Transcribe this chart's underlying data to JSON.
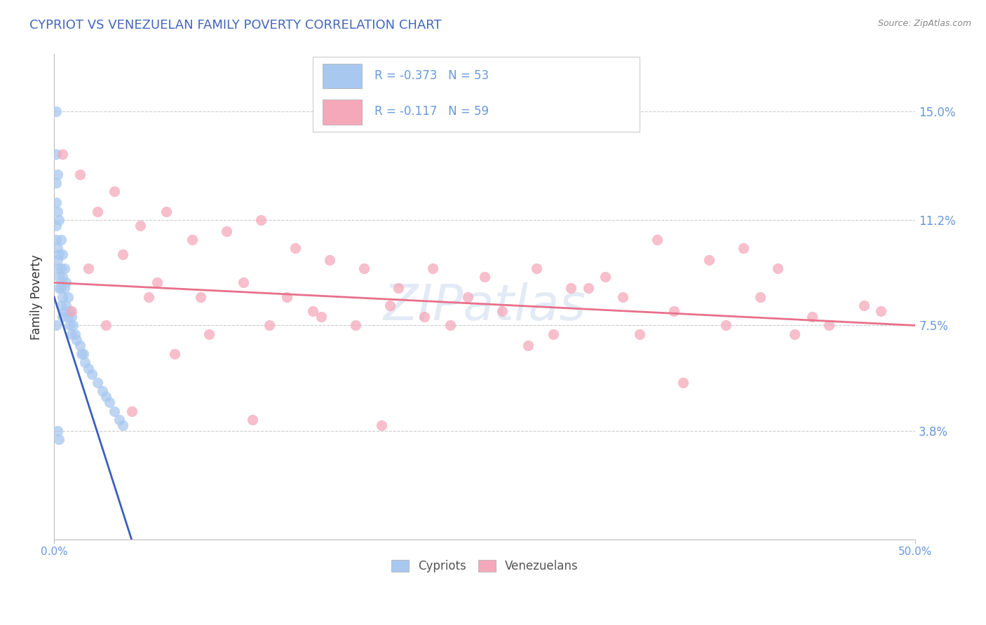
{
  "title": "CYPRIOT VS VENEZUELAN FAMILY POVERTY CORRELATION CHART",
  "source": "Source: ZipAtlas.com",
  "ylabel": "Family Poverty",
  "xlim": [
    0.0,
    50.0
  ],
  "ylim": [
    0.0,
    17.0
  ],
  "yticks": [
    3.8,
    7.5,
    11.2,
    15.0
  ],
  "ytick_labels": [
    "3.8%",
    "7.5%",
    "11.2%",
    "15.0%"
  ],
  "xtick_labels_show": [
    "0.0%",
    "50.0%"
  ],
  "xticks_show": [
    0.0,
    50.0
  ],
  "cypriot_color": "#A8C8F0",
  "cypriot_edge_color": "#A8C8F0",
  "venezuelan_color": "#F5A8BA",
  "venezuelan_edge_color": "#F5A8BA",
  "cypriot_line_color": "#3A5FBF",
  "venezuelan_line_color": "#E8708A",
  "cypriot_R": -0.373,
  "cypriot_N": 53,
  "venezuelan_R": -0.117,
  "venezuelan_N": 59,
  "legend_label_cypriot": "Cypriots",
  "legend_label_venezuelan": "Venezuelans",
  "watermark": "ZIPatlas",
  "title_color": "#4466BB",
  "axis_label_color": "#333333",
  "tick_color_right": "#6699DD",
  "source_color": "#888888",
  "grid_color": "#CCCCCC",
  "cypriot_points_x": [
    0.1,
    0.1,
    0.1,
    0.1,
    0.1,
    0.1,
    0.2,
    0.2,
    0.2,
    0.2,
    0.2,
    0.3,
    0.3,
    0.3,
    0.3,
    0.4,
    0.4,
    0.4,
    0.4,
    0.5,
    0.5,
    0.5,
    0.5,
    0.6,
    0.6,
    0.6,
    0.7,
    0.7,
    0.8,
    0.8,
    0.9,
    0.9,
    1.0,
    1.0,
    1.1,
    1.2,
    1.3,
    1.5,
    1.6,
    1.7,
    1.8,
    2.0,
    2.2,
    2.5,
    2.8,
    3.0,
    3.2,
    3.5,
    3.8,
    4.0,
    0.1,
    0.2,
    0.3
  ],
  "cypriot_points_y": [
    15.0,
    13.5,
    12.5,
    11.8,
    11.0,
    10.5,
    12.8,
    11.5,
    10.2,
    9.8,
    9.5,
    11.2,
    10.0,
    9.2,
    8.8,
    10.5,
    9.5,
    8.8,
    8.2,
    10.0,
    9.2,
    8.5,
    7.8,
    9.5,
    8.8,
    8.0,
    9.0,
    8.2,
    8.5,
    7.8,
    8.0,
    7.5,
    7.8,
    7.2,
    7.5,
    7.2,
    7.0,
    6.8,
    6.5,
    6.5,
    6.2,
    6.0,
    5.8,
    5.5,
    5.2,
    5.0,
    4.8,
    4.5,
    4.2,
    4.0,
    7.5,
    3.8,
    3.5
  ],
  "venezuelan_points_x": [
    0.5,
    1.5,
    2.5,
    3.5,
    5.0,
    6.5,
    8.0,
    10.0,
    12.0,
    14.0,
    16.0,
    18.0,
    20.0,
    22.0,
    25.0,
    28.0,
    30.0,
    32.0,
    35.0,
    38.0,
    40.0,
    42.0,
    45.0,
    48.0,
    2.0,
    4.0,
    6.0,
    8.5,
    11.0,
    13.5,
    15.5,
    17.5,
    19.5,
    21.5,
    24.0,
    26.0,
    29.0,
    31.0,
    33.0,
    36.0,
    39.0,
    41.0,
    44.0,
    47.0,
    1.0,
    3.0,
    5.5,
    9.0,
    12.5,
    15.0,
    7.0,
    23.0,
    27.5,
    34.0,
    43.0,
    4.5,
    11.5,
    19.0,
    36.5
  ],
  "venezuelan_points_y": [
    13.5,
    12.8,
    11.5,
    12.2,
    11.0,
    11.5,
    10.5,
    10.8,
    11.2,
    10.2,
    9.8,
    9.5,
    8.8,
    9.5,
    9.2,
    9.5,
    8.8,
    9.2,
    10.5,
    9.8,
    10.2,
    9.5,
    7.5,
    8.0,
    9.5,
    10.0,
    9.0,
    8.5,
    9.0,
    8.5,
    7.8,
    7.5,
    8.2,
    7.8,
    8.5,
    8.0,
    7.2,
    8.8,
    8.5,
    8.0,
    7.5,
    8.5,
    7.8,
    8.2,
    8.0,
    7.5,
    8.5,
    7.2,
    7.5,
    8.0,
    6.5,
    7.5,
    6.8,
    7.2,
    7.2,
    4.5,
    4.2,
    4.0,
    5.5
  ],
  "ven_trend_x0": 0.0,
  "ven_trend_y0": 9.0,
  "ven_trend_x1": 50.0,
  "ven_trend_y1": 7.5,
  "cyp_trend_x0": 0.0,
  "cyp_trend_y0": 8.5,
  "cyp_trend_x1": 4.5,
  "cyp_trend_y1": 0.0
}
